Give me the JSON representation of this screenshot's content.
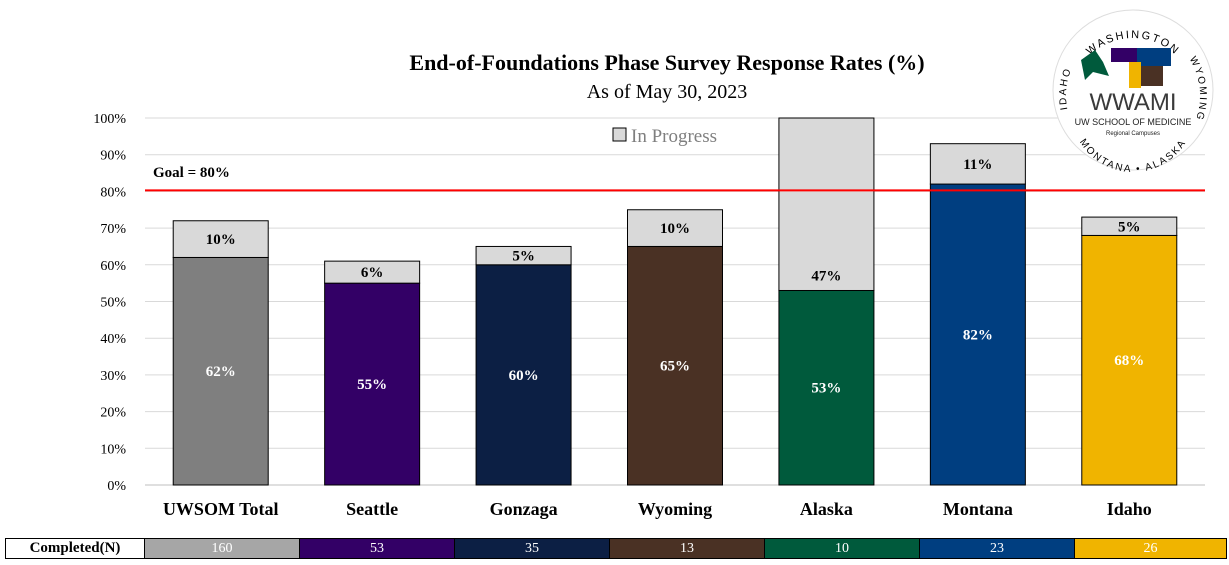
{
  "chart_data": {
    "type": "bar",
    "stacked": true,
    "title": "End-of-Foundations Phase Survey Response Rates (%)",
    "subtitle": "As of May 30, 2023",
    "categories": [
      "UWSOM Total",
      "Seattle",
      "Gonzaga",
      "Wyoming",
      "Alaska",
      "Montana",
      "Idaho"
    ],
    "completed": [
      62,
      55,
      60,
      65,
      53,
      82,
      68
    ],
    "completed_labels": [
      "62%",
      "55%",
      "60%",
      "65%",
      "53%",
      "82%",
      "68%"
    ],
    "in_progress": [
      10,
      6,
      5,
      10,
      47,
      11,
      5
    ],
    "in_progress_labels": [
      "10%",
      "6%",
      "5%",
      "10%",
      "47%",
      "11%",
      "5%"
    ],
    "colors": [
      "#7f7f7f",
      "#330066",
      "#0c1f44",
      "#4a3124",
      "#005a3c",
      "#003e80",
      "#f0b400"
    ],
    "in_progress_color": "#d9d9d9",
    "legend": "In Progress",
    "legend_position": "top",
    "ylim": [
      0,
      100
    ],
    "yticks": [
      "0%",
      "10%",
      "20%",
      "30%",
      "40%",
      "50%",
      "60%",
      "70%",
      "80%",
      "90%",
      "100%"
    ],
    "goal": {
      "value": 80,
      "label": "Goal = 80%",
      "color": "#ff0000"
    },
    "grid": true
  },
  "table": {
    "header": "Completed(N)",
    "values": [
      "160",
      "53",
      "35",
      "13",
      "10",
      "23",
      "26"
    ],
    "colors": [
      "#a6a6a6",
      "#330066",
      "#0c1f44",
      "#4a3124",
      "#005a3c",
      "#003e80",
      "#f0b400"
    ]
  },
  "logo": {
    "top": "WASHINGTON",
    "right": "WYOMING",
    "left": "IDAHO",
    "bottom": "MONTANA • ALASKA",
    "name": "WWAMI",
    "line1": "UW SCHOOL OF MEDICINE",
    "line2": "Regional Campuses"
  }
}
